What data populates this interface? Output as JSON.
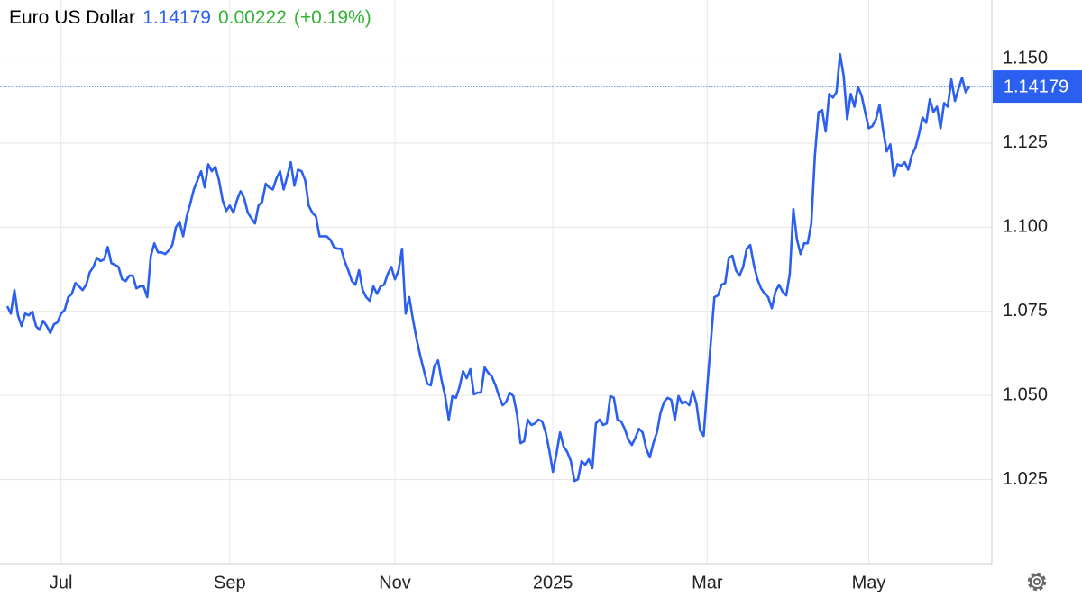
{
  "chart_data": {
    "type": "line",
    "title": "Euro US Dollar",
    "last_price": 1.14179,
    "change": 0.00222,
    "change_label": "(+0.19%)",
    "color": "#2a5ff0",
    "price_color": "#2a5ff0",
    "change_color": "#33b533",
    "grid": true,
    "ylim": [
      1.0,
      1.1675
    ],
    "yticks": [
      1.025,
      {
        "value": 1.05,
        "label": "1.050"
      },
      1.075,
      {
        "value": 1.1,
        "label": "1.100"
      },
      1.125,
      {
        "value": 1.15,
        "label": "1.150"
      }
    ],
    "categories": [
      null,
      null,
      null,
      null,
      null,
      null,
      null,
      null,
      null,
      null,
      null,
      null,
      null,
      null,
      null,
      "Jul",
      null,
      null,
      null,
      null,
      null,
      null,
      null,
      null,
      null,
      null,
      null,
      null,
      null,
      null,
      null,
      null,
      null,
      null,
      null,
      null,
      null,
      null,
      null,
      null,
      null,
      null,
      null,
      null,
      null,
      null,
      null,
      null,
      null,
      null,
      null,
      null,
      null,
      null,
      null,
      null,
      null,
      null,
      null,
      null,
      null,
      null,
      "Sep",
      null,
      null,
      null,
      null,
      null,
      null,
      null,
      null,
      null,
      null,
      null,
      null,
      null,
      null,
      null,
      null,
      null,
      null,
      null,
      null,
      null,
      null,
      null,
      null,
      null,
      null,
      null,
      null,
      null,
      null,
      null,
      null,
      null,
      null,
      null,
      null,
      null,
      null,
      null,
      null,
      null,
      null,
      null,
      null,
      null,
      "Nov",
      null,
      null,
      null,
      null,
      null,
      null,
      null,
      null,
      null,
      null,
      null,
      null,
      null,
      null,
      null,
      null,
      null,
      null,
      null,
      null,
      null,
      null,
      null,
      null,
      null,
      null,
      null,
      null,
      null,
      null,
      null,
      null,
      null,
      null,
      null,
      null,
      null,
      null,
      null,
      null,
      null,
      null,
      null,
      "2025",
      null,
      null,
      null,
      null,
      null,
      null,
      null,
      null,
      null,
      null,
      null,
      null,
      null,
      null,
      null,
      null,
      null,
      null,
      null,
      null,
      null,
      null,
      null,
      null,
      null,
      null,
      null,
      null,
      null,
      null,
      null,
      null,
      null,
      null,
      null,
      null,
      null,
      null,
      null,
      null,
      null,
      null,
      "Mar",
      null,
      null,
      null,
      null,
      null,
      null,
      null,
      null,
      null,
      null,
      null,
      null,
      null,
      null,
      null,
      null,
      null,
      null,
      null,
      null,
      null,
      null,
      null,
      null,
      null,
      null,
      null,
      null,
      null,
      null,
      null,
      null,
      null,
      null,
      null,
      null,
      null,
      null,
      null,
      null,
      null,
      null,
      null,
      null,
      "May",
      null,
      null,
      null,
      null,
      null,
      null,
      null,
      null,
      null,
      null,
      null,
      null,
      null,
      null,
      null,
      null,
      null,
      null,
      null,
      null,
      null,
      null,
      null,
      null,
      null,
      null,
      null,
      null
    ],
    "values": [
      1.0765,
      1.0743,
      1.0813,
      1.0738,
      1.0706,
      1.0743,
      1.0738,
      1.0749,
      1.0706,
      1.0695,
      1.0722,
      1.0706,
      1.0685,
      1.0711,
      1.0717,
      1.0743,
      1.0754,
      1.0792,
      1.0802,
      1.0834,
      1.0824,
      1.0813,
      1.0829,
      1.0866,
      1.0882,
      1.0909,
      1.0899,
      1.0904,
      1.0941,
      1.0893,
      1.0888,
      1.0882,
      1.0845,
      1.084,
      1.0856,
      1.0856,
      1.0818,
      1.0824,
      1.0824,
      1.0792,
      1.0915,
      1.0952,
      1.0925,
      1.0925,
      1.092,
      1.0931,
      1.0947,
      1.1,
      1.1016,
      1.0973,
      1.1032,
      1.107,
      1.1112,
      1.1139,
      1.1166,
      1.1118,
      1.1187,
      1.1166,
      1.1179,
      1.1139,
      1.108,
      1.1048,
      1.1064,
      1.1043,
      1.108,
      1.1107,
      1.1086,
      1.1043,
      1.1027,
      1.1011,
      1.1064,
      1.1075,
      1.1129,
      1.1118,
      1.1112,
      1.1145,
      1.1166,
      1.1112,
      1.115,
      1.1193,
      1.1123,
      1.1171,
      1.1166,
      1.1139,
      1.1064,
      1.1043,
      1.1032,
      1.0973,
      1.0973,
      1.0973,
      1.0963,
      1.0941,
      1.0936,
      1.0936,
      1.0899,
      1.0872,
      1.084,
      1.0829,
      1.0872,
      1.0813,
      1.0792,
      1.0781,
      1.0824,
      1.0802,
      1.0824,
      1.0829,
      1.0861,
      1.0882,
      1.0845,
      1.0872,
      1.0936,
      1.0743,
      1.0792,
      1.0727,
      1.0669,
      1.062,
      1.0578,
      1.0535,
      1.053,
      1.0588,
      1.0604,
      1.0546,
      1.0498,
      1.0428,
      1.0498,
      1.0493,
      1.0525,
      1.0572,
      1.0551,
      1.0578,
      1.0503,
      1.0508,
      1.0508,
      1.0583,
      1.0567,
      1.0556,
      1.053,
      1.0498,
      1.0471,
      1.0481,
      1.0508,
      1.0498,
      1.0444,
      1.0358,
      1.0364,
      1.0428,
      1.0412,
      1.0417,
      1.0428,
      1.0423,
      1.039,
      1.0337,
      1.0273,
      1.0326,
      1.039,
      1.0348,
      1.0332,
      1.0305,
      1.0246,
      1.0251,
      1.0305,
      1.0294,
      1.031,
      1.0284,
      1.0417,
      1.0428,
      1.0412,
      1.0417,
      1.0498,
      1.0493,
      1.0428,
      1.0423,
      1.0401,
      1.0369,
      1.0353,
      1.0374,
      1.0401,
      1.039,
      1.0342,
      1.0316,
      1.0358,
      1.039,
      1.0449,
      1.0481,
      1.0493,
      1.0487,
      1.0428,
      1.0498,
      1.0476,
      1.0481,
      1.0471,
      1.0513,
      1.0476,
      1.0396,
      1.038,
      1.0525,
      1.0658,
      1.0792,
      1.0797,
      1.0829,
      1.0834,
      1.0909,
      1.0915,
      1.0872,
      1.0856,
      1.0882,
      1.0936,
      1.0947,
      1.0888,
      1.0845,
      1.0818,
      1.0802,
      1.0792,
      1.0759,
      1.0808,
      1.0829,
      1.0808,
      1.0797,
      1.0861,
      1.1054,
      1.0963,
      1.092,
      1.0952,
      1.0952,
      1.1011,
      1.1214,
      1.1342,
      1.1348,
      1.1284,
      1.1396,
      1.1385,
      1.1401,
      1.1514,
      1.1449,
      1.1321,
      1.1396,
      1.1358,
      1.1417,
      1.1391,
      1.1342,
      1.1294,
      1.13,
      1.1321,
      1.1364,
      1.1289,
      1.1225,
      1.1246,
      1.115,
      1.1187,
      1.1182,
      1.1193,
      1.1171,
      1.1214,
      1.1236,
      1.1278,
      1.1326,
      1.131,
      1.138,
      1.1342,
      1.1358,
      1.1294,
      1.1369,
      1.1358,
      1.1439,
      1.1375,
      1.1412,
      1.1444,
      1.1401,
      1.1418
    ]
  }
}
